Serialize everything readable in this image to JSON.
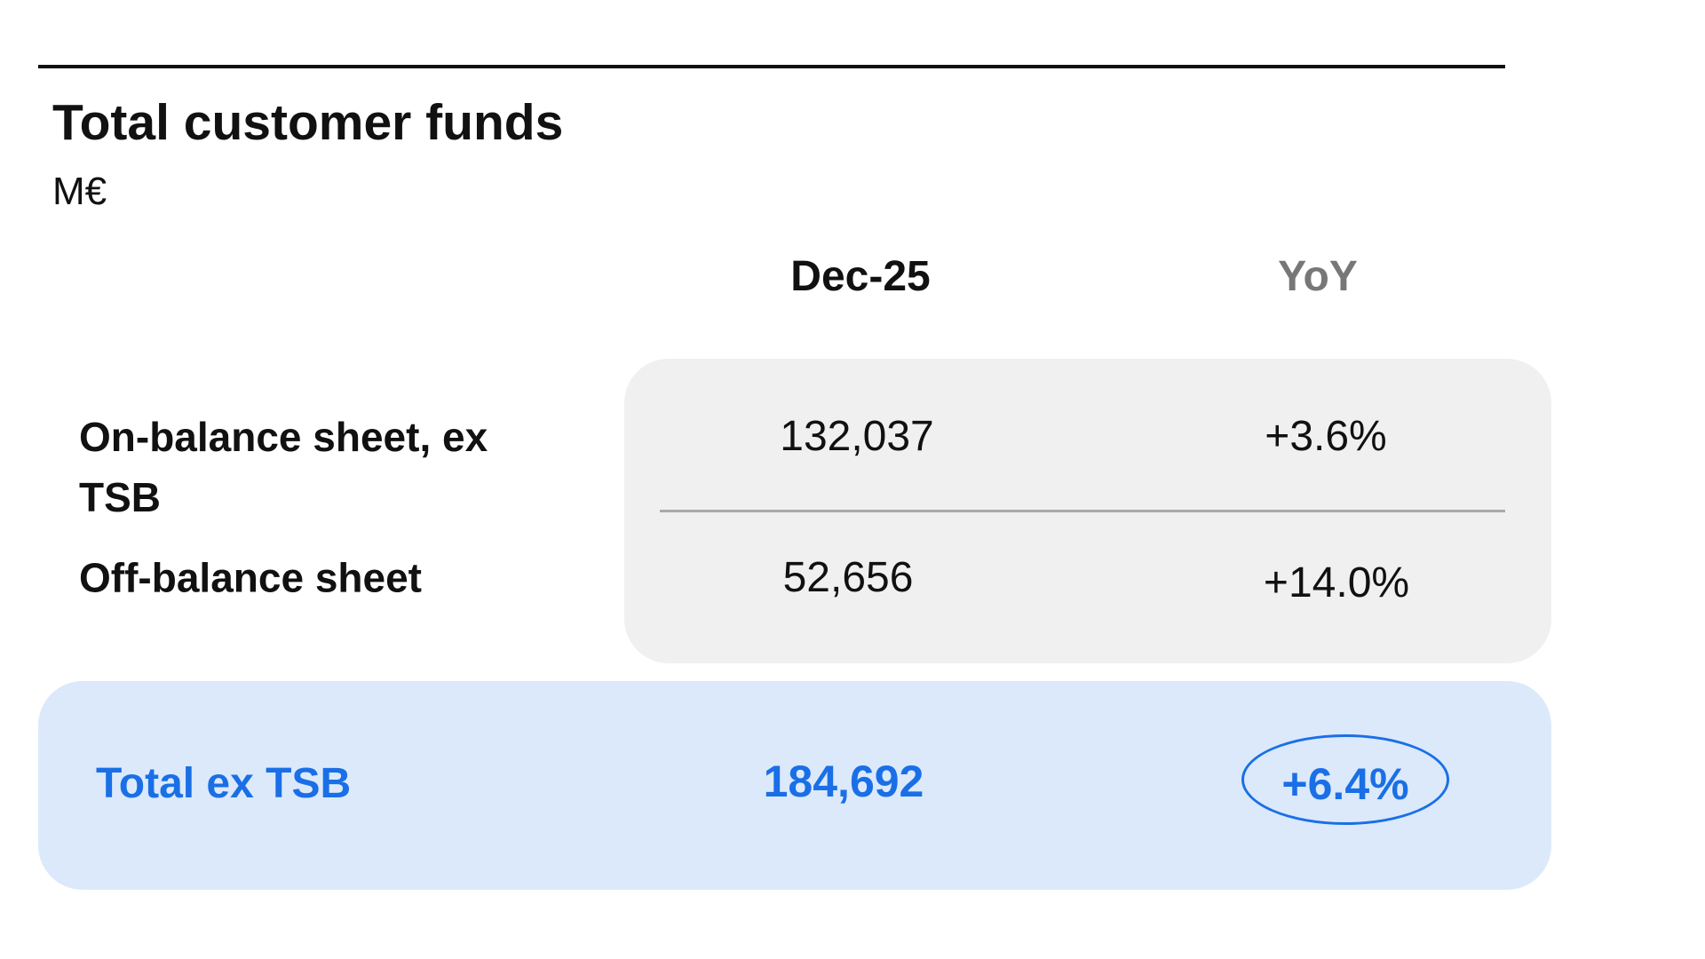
{
  "header": {
    "title": "Total customer funds",
    "subtitle": "M€"
  },
  "table": {
    "columns": [
      "Dec-25",
      "YoY"
    ],
    "rows": [
      [
        "On-balance sheet, ex TSB",
        "132,037",
        "+3.6%"
      ],
      [
        "Off-balance sheet",
        "52,656",
        "+14.0%"
      ]
    ],
    "total": [
      "Total ex TSB",
      "184,692",
      "+6.4%"
    ]
  }
}
